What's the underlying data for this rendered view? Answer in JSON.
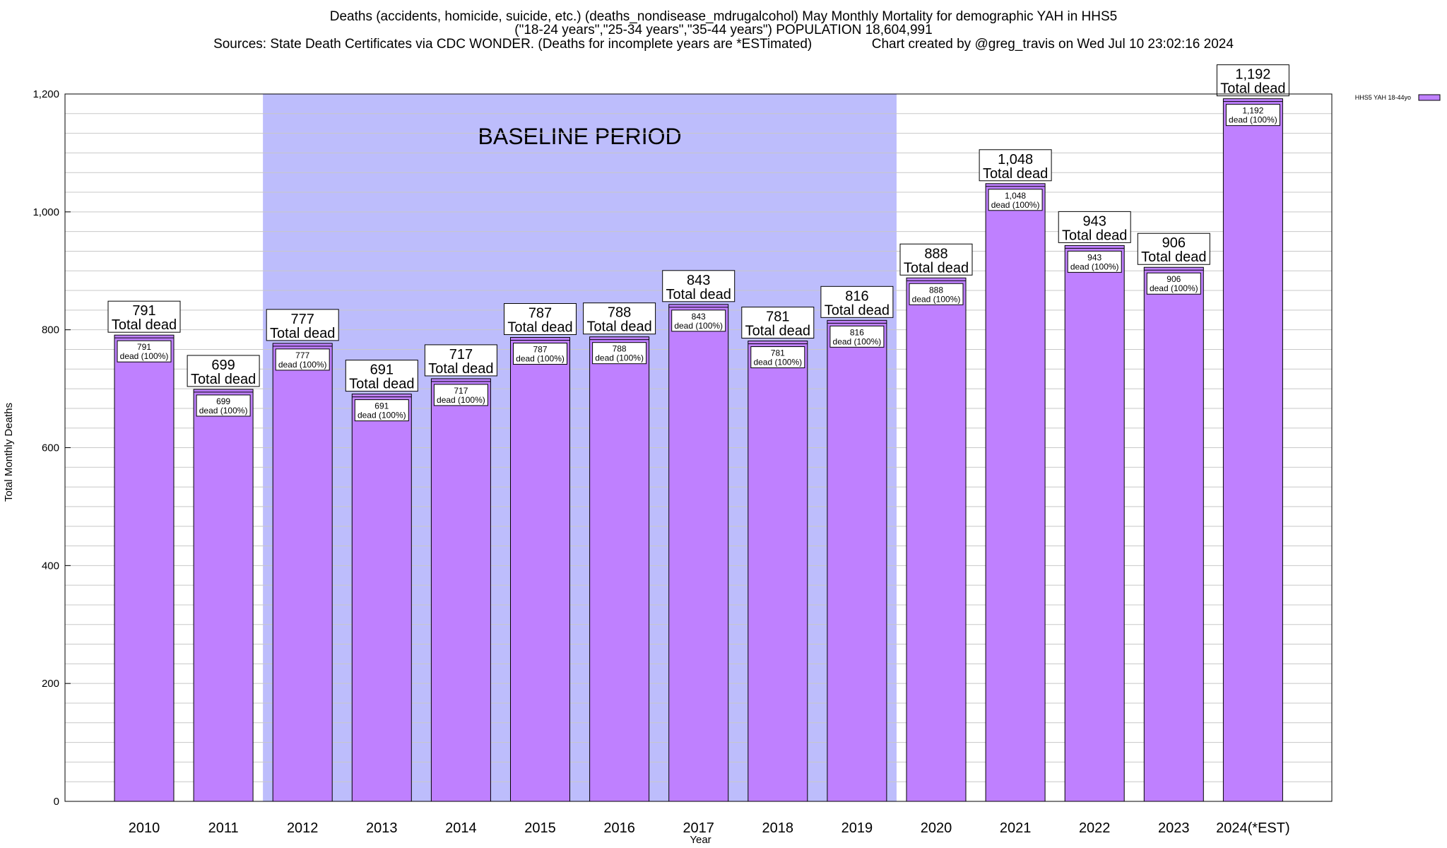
{
  "chart_data": {
    "type": "bar",
    "title_lines": [
      "Deaths (accidents, homicide, suicide, etc.) (deaths_nondisease_mdrugalcohol) May Monthly Mortality for demographic YAH in HHS5",
      "(\"18-24 years\",\"25-34 years\",\"35-44 years\") POPULATION 18,604,991",
      "Sources: State Death Certificates via CDC WONDER. (Deaths for incomplete years are *ESTimated)                Chart created by @greg_travis on Wed Jul 10 23:02:16 2024"
    ],
    "xlabel": "Year",
    "ylabel": "Total Monthly Deaths",
    "ylim": [
      0,
      1200
    ],
    "yticks": [
      0,
      200,
      400,
      600,
      800,
      1000,
      1200
    ],
    "ytick_labels": [
      "0",
      "200",
      "400",
      "600",
      "800",
      "1,000",
      "1,200"
    ],
    "categories": [
      "2010",
      "2011",
      "2012",
      "2013",
      "2014",
      "2015",
      "2016",
      "2017",
      "2018",
      "2019",
      "2020",
      "2021",
      "2022",
      "2023",
      "2024(*EST)"
    ],
    "series": [
      {
        "name": "HHS5 YAH 18-44yo",
        "values": [
          791,
          699,
          777,
          691,
          717,
          787,
          788,
          843,
          781,
          816,
          888,
          1048,
          943,
          906,
          1192
        ],
        "value_labels": [
          "791",
          "699",
          "777",
          "691",
          "717",
          "787",
          "788",
          "843",
          "781",
          "816",
          "888",
          "1,048",
          "943",
          "906",
          "1,192"
        ]
      }
    ],
    "total_suffix": "Total dead",
    "inner_suffix": "dead (100%)",
    "baseline_label": "BASELINE PERIOD",
    "baseline_range": [
      "2012",
      "2019"
    ],
    "grid": true,
    "legend_position": "top-right",
    "colors": {
      "bar_fill": "#bf80ff",
      "bar_stroke": "#000000",
      "baseline_fill": "#bdbdfc",
      "grid": "#c8c8c8",
      "legend_swatch": "#bf80ff"
    }
  }
}
